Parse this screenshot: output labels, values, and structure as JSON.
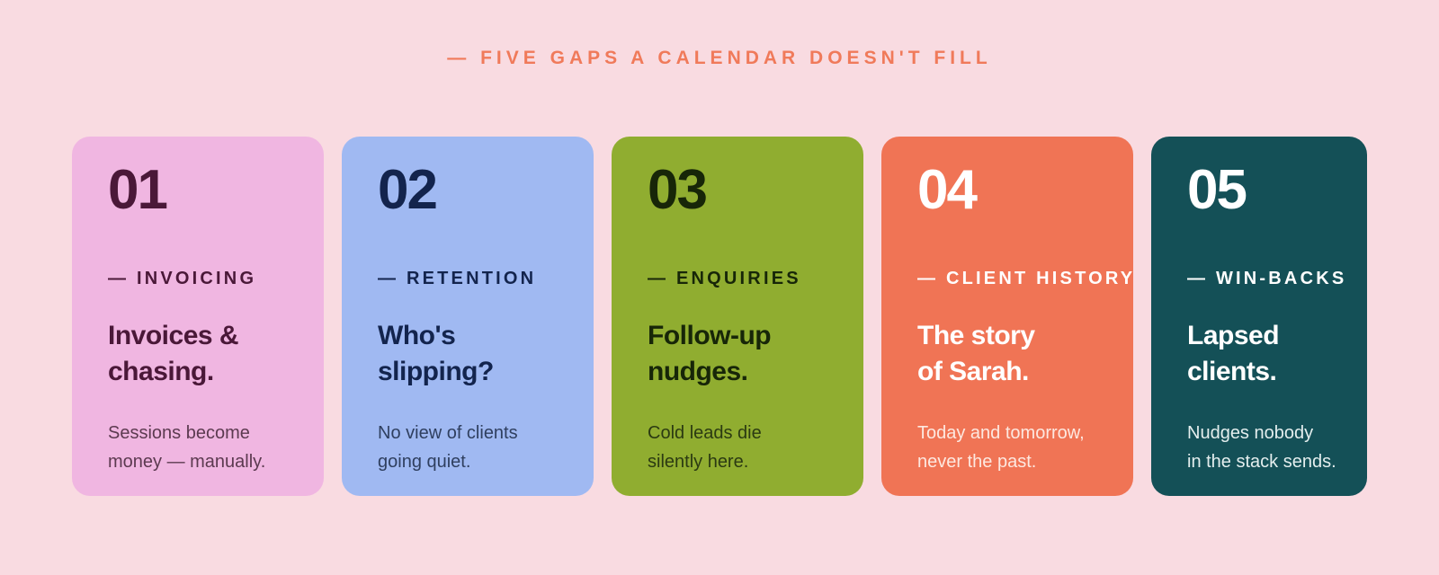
{
  "eyebrow": "— FIVE GAPS A CALENDAR DOESN'T FILL",
  "colors": {
    "background": "#f9dbe1",
    "eyebrow": "#f07a5a"
  },
  "cards": [
    {
      "number": "01",
      "tag": "— INVOICING",
      "title_line1": "Invoices &",
      "title_line2": "chasing.",
      "desc_line1": "Sessions become",
      "desc_line2": "money — manually.",
      "bg": "#f0b6e1",
      "heading_color": "#4a1838",
      "text_color": "#5c3a50"
    },
    {
      "number": "02",
      "tag": "— RETENTION",
      "title_line1": "Who's",
      "title_line2": "slipping?",
      "desc_line1": "No view of clients",
      "desc_line2": "going quiet.",
      "bg": "#a0b9f2",
      "heading_color": "#13244d",
      "text_color": "#2f3f5f"
    },
    {
      "number": "03",
      "tag": "— ENQUIRIES",
      "title_line1": "Follow-up",
      "title_line2": "nudges.",
      "desc_line1": "Cold leads die",
      "desc_line2": "silently here.",
      "bg": "#90ad30",
      "heading_color": "#172608",
      "text_color": "#2b3a12"
    },
    {
      "number": "04",
      "tag": "— CLIENT HISTORY",
      "title_line1": "The story",
      "title_line2": "of Sarah.",
      "desc_line1": "Today and tomorrow,",
      "desc_line2": "never the past.",
      "bg": "#f07455",
      "heading_color": "#ffffff",
      "text_color": "#fde8e0"
    },
    {
      "number": "05",
      "tag": "— WIN-BACKS",
      "title_line1": "Lapsed",
      "title_line2": "clients.",
      "desc_line1": "Nudges nobody",
      "desc_line2": "in the stack sends.",
      "bg": "#145057",
      "heading_color": "#ffffff",
      "text_color": "#e4eeee"
    }
  ]
}
